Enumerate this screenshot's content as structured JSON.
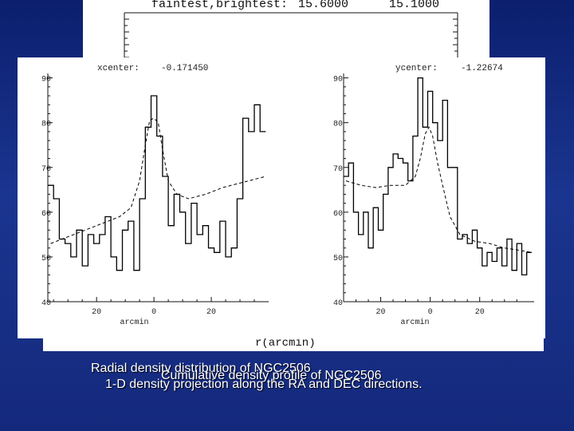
{
  "back_header": {
    "label": "faintest,brightest:",
    "faintest": "15.6000",
    "brightest": "15.1000"
  },
  "back_xlabel": "r(arcmin)",
  "captions": {
    "line1": "Radial density distribution of NGC2506",
    "line2": "Cumulative density profile of NGC2506",
    "line3": "1-D density projection along the RA and DEC directions."
  },
  "chart_data": [
    {
      "type": "line",
      "title": "xcenter:",
      "title_value": "-0.171450",
      "xlabel": "arcmin",
      "ylabel": "",
      "xlim": [
        -37,
        40
      ],
      "ylim": [
        40,
        91
      ],
      "xticks": [
        -20,
        0,
        20
      ],
      "xtick_labels": [
        "20",
        "0",
        "20"
      ],
      "yticks": [
        40,
        50,
        60,
        70,
        80,
        90
      ],
      "grid": false,
      "series": [
        {
          "style": "step-histogram",
          "x": [
            -36,
            -34,
            -32,
            -30,
            -28,
            -26,
            -24,
            -22,
            -20,
            -18,
            -16,
            -14,
            -12,
            -10,
            -8,
            -6,
            -4,
            -2,
            0,
            2,
            4,
            6,
            8,
            10,
            12,
            14,
            16,
            18,
            20,
            22,
            24,
            26,
            28,
            30,
            32,
            34,
            36,
            38
          ],
          "y": [
            66,
            63,
            54,
            53,
            50,
            56,
            48,
            55,
            53,
            55,
            59,
            50,
            47,
            56,
            58,
            47,
            63,
            79,
            86,
            77,
            68,
            57,
            64,
            60,
            53,
            62,
            55,
            57,
            52,
            51,
            58,
            50,
            52,
            63,
            81,
            78,
            84,
            78
          ]
        },
        {
          "style": "dashed-fit",
          "x": [
            -36,
            -30,
            -24,
            -18,
            -12,
            -8,
            -5,
            -3,
            -1.5,
            0,
            1.5,
            3,
            5,
            8,
            12,
            18,
            24,
            30,
            36,
            39
          ],
          "y": [
            53,
            54.5,
            56,
            57.5,
            59,
            61,
            67,
            75,
            80.5,
            81,
            80,
            74,
            67,
            64,
            63,
            64,
            65.5,
            66.5,
            67.5,
            68
          ]
        }
      ]
    },
    {
      "type": "line",
      "title": "ycenter:",
      "title_value": "-1.22674",
      "xlabel": "arcmin",
      "ylabel": "",
      "xlim": [
        -35,
        42
      ],
      "ylim": [
        40,
        91
      ],
      "xticks": [
        -20,
        0,
        20
      ],
      "xtick_labels": [
        "20",
        "0",
        "20"
      ],
      "yticks": [
        40,
        50,
        60,
        70,
        80,
        90
      ],
      "grid": false,
      "series": [
        {
          "style": "step-histogram",
          "x": [
            -34,
            -32,
            -30,
            -28,
            -26,
            -24,
            -22,
            -20,
            -18,
            -16,
            -14,
            -12,
            -10,
            -8,
            -6,
            -4,
            -2,
            0,
            2,
            4,
            6,
            8,
            10,
            12,
            14,
            16,
            18,
            20,
            22,
            24,
            26,
            28,
            30,
            32,
            34,
            36,
            38,
            40
          ],
          "y": [
            68,
            71,
            60,
            55,
            60,
            52,
            61,
            56,
            64,
            70,
            73,
            72,
            71,
            67,
            77,
            90,
            79,
            87,
            80,
            76,
            85,
            70,
            70,
            54,
            55,
            53,
            56,
            52,
            48,
            51,
            49,
            52,
            48,
            54,
            47,
            53,
            46,
            51
          ]
        },
        {
          "style": "dashed-fit",
          "x": [
            -34,
            -28,
            -22,
            -16,
            -10,
            -6,
            -4,
            -2,
            -0.5,
            1,
            3,
            5,
            8,
            12,
            18,
            24,
            30,
            36,
            41
          ],
          "y": [
            67,
            66,
            65.5,
            66,
            66,
            68,
            72,
            77.5,
            79,
            77,
            71,
            66,
            59,
            55,
            53.5,
            53,
            52,
            51.5,
            51
          ]
        }
      ]
    }
  ]
}
